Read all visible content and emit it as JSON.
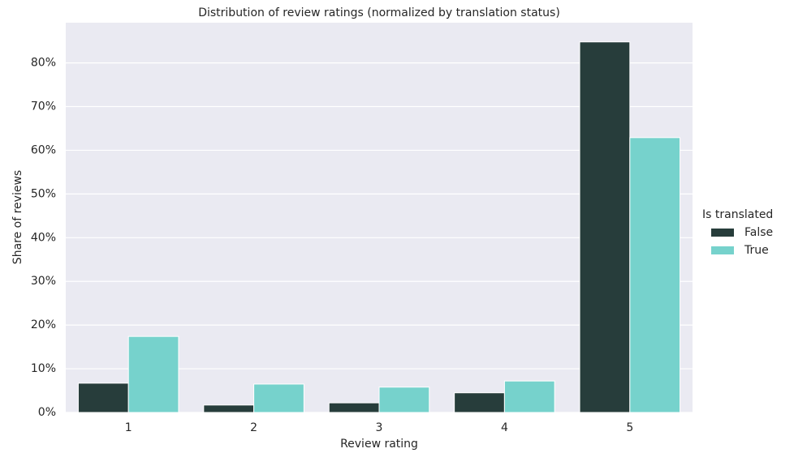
{
  "chart_data": {
    "type": "bar",
    "title": "Distribution of review ratings (normalized by translation status)",
    "x_label": "Review rating",
    "y_label": "Share of reviews",
    "legend_title": "Is translated",
    "categories": [
      "1",
      "2",
      "3",
      "4",
      "5"
    ],
    "series": [
      {
        "name": "False",
        "color": "#273d3b",
        "values": [
          6.7,
          1.7,
          2.2,
          4.5,
          84.8
        ]
      },
      {
        "name": "True",
        "color": "#76d2cc",
        "values": [
          17.4,
          6.5,
          5.8,
          7.2,
          62.9
        ]
      }
    ],
    "ylim": [
      0,
      89.2
    ],
    "yticks": [
      {
        "value": 0,
        "label": "0%"
      },
      {
        "value": 10,
        "label": "10%"
      },
      {
        "value": 20,
        "label": "20%"
      },
      {
        "value": 30,
        "label": "30%"
      },
      {
        "value": 40,
        "label": "40%"
      },
      {
        "value": 50,
        "label": "50%"
      },
      {
        "value": 60,
        "label": "60%"
      },
      {
        "value": 70,
        "label": "70%"
      },
      {
        "value": 80,
        "label": "80%"
      }
    ],
    "grid": true
  }
}
